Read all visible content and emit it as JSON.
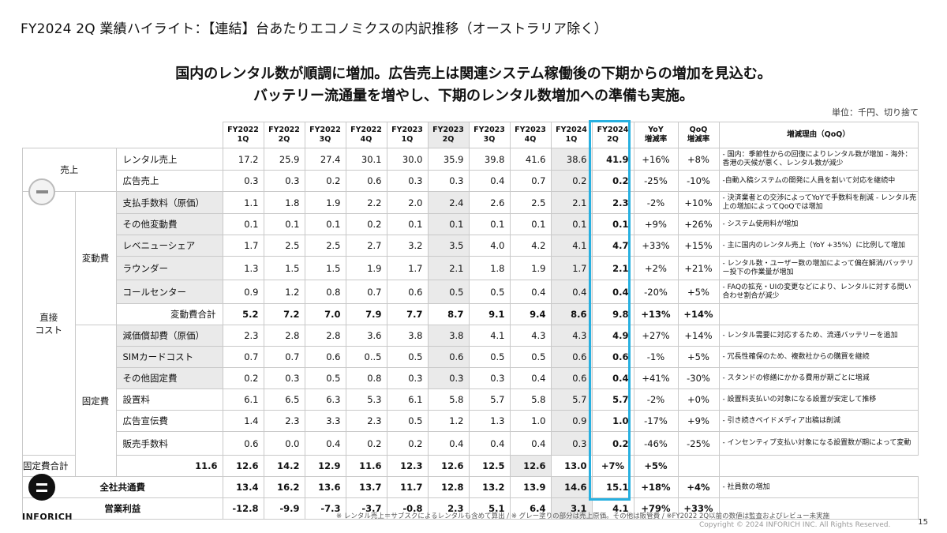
{
  "title": "FY2024 2Q 業績ハイライト：【連結】台あたりエコノミクスの内訳推移（オーストラリア除く）",
  "headline": {
    "line1": "国内のレンタル数が順調に増加。広告売上は関連システム稼働後の下期からの増加を見込む。",
    "line2": "バッテリー流通量を増やし、下期のレンタル数増加への準備も実施。"
  },
  "unit": "単位：千円、切り捨て",
  "columns": [
    {
      "top": "FY2022",
      "bottom": "1Q"
    },
    {
      "top": "FY2022",
      "bottom": "2Q"
    },
    {
      "top": "FY2022",
      "bottom": "3Q"
    },
    {
      "top": "FY2022",
      "bottom": "4Q"
    },
    {
      "top": "FY2023",
      "bottom": "1Q"
    },
    {
      "top": "FY2023",
      "bottom": "2Q"
    },
    {
      "top": "FY2023",
      "bottom": "3Q"
    },
    {
      "top": "FY2023",
      "bottom": "4Q"
    },
    {
      "top": "FY2024",
      "bottom": "1Q"
    },
    {
      "top": "FY2024",
      "bottom": "2Q"
    },
    {
      "top": "YoY",
      "bottom": "増減率"
    },
    {
      "top": "QoQ",
      "bottom": "増減率"
    }
  ],
  "reason_header": "増減理由（QoQ）",
  "groups": {
    "sales": "売上",
    "direct": "直接\nコスト",
    "variable": "変動費",
    "fixed": "固定費"
  },
  "rows": {
    "rental": {
      "label": "レンタル売上",
      "values": [
        "17.2",
        "25.9",
        "27.4",
        "30.1",
        "30.0",
        "35.9",
        "39.8",
        "41.6",
        "38.6",
        "41.9",
        "+16%",
        "+8%"
      ],
      "reason": "- 国内：季節性からの回復によりレンタル数が増加\n- 海外：香港の天候が悪く、レンタル数が減少"
    },
    "ads": {
      "label": "広告売上",
      "values": [
        "0.3",
        "0.3",
        "0.2",
        "0.6",
        "0.3",
        "0.3",
        "0.4",
        "0.7",
        "0.2",
        "0.2",
        "-25%",
        "-10%"
      ],
      "reason": "-自動入稿システムの開発に人員を割いて対応を継続中"
    },
    "fees": {
      "label": "支払手数料（原価）",
      "values": [
        "1.1",
        "1.8",
        "1.9",
        "2.2",
        "2.0",
        "2.4",
        "2.6",
        "2.5",
        "2.1",
        "2.3",
        "-2%",
        "+10%"
      ],
      "reason": "- 決済業者との交渉によってYoYで手数料を削減\n- レンタル売上の増加によってQoQでは増加"
    },
    "other_var": {
      "label": "その他変動費",
      "values": [
        "0.1",
        "0.1",
        "0.1",
        "0.2",
        "0.1",
        "0.1",
        "0.1",
        "0.1",
        "0.1",
        "0.1",
        "+9%",
        "+26%"
      ],
      "reason": "- システム使用料が増加"
    },
    "revshare": {
      "label": "レベニューシェア",
      "values": [
        "1.7",
        "2.5",
        "2.5",
        "2.7",
        "3.2",
        "3.5",
        "4.0",
        "4.2",
        "4.1",
        "4.7",
        "+33%",
        "+15%"
      ],
      "reason": "- 主に国内のレンタル売上（YoY +35%）に比例して増加"
    },
    "rounder": {
      "label": "ラウンダー",
      "values": [
        "1.3",
        "1.5",
        "1.5",
        "1.9",
        "1.7",
        "2.1",
        "1.8",
        "1.9",
        "1.7",
        "2.1",
        "+2%",
        "+21%"
      ],
      "reason": "- レンタル数・ユーザー数の増加によって偏在解消/バッテリー投下の作業量が増加"
    },
    "callcenter": {
      "label": "コールセンター",
      "values": [
        "0.9",
        "1.2",
        "0.8",
        "0.7",
        "0.6",
        "0.5",
        "0.5",
        "0.4",
        "0.4",
        "0.4",
        "-20%",
        "+5%"
      ],
      "reason": "- FAQの拡充・UIの変更などにより、レンタルに対する問い合わせ割合が減少"
    },
    "var_total": {
      "label": "変動費合計",
      "values": [
        "5.2",
        "7.2",
        "7.0",
        "7.9",
        "7.7",
        "8.7",
        "9.1",
        "9.4",
        "8.6",
        "9.8",
        "+13%",
        "+14%"
      ],
      "reason": ""
    },
    "depreciation": {
      "label": "減価償却費（原価）",
      "values": [
        "2.3",
        "2.8",
        "2.8",
        "3.6",
        "3.8",
        "3.8",
        "4.1",
        "4.3",
        "4.3",
        "4.9",
        "+27%",
        "+14%"
      ],
      "reason": "- レンタル需要に対応するため、流通バッテリーを追加"
    },
    "sim": {
      "label": "SIMカードコスト",
      "values": [
        "0.7",
        "0.7",
        "0.6",
        "0..5",
        "0.5",
        "0.6",
        "0.5",
        "0.5",
        "0.6",
        "0.6",
        "-1%",
        "+5%"
      ],
      "reason": "- 冗長性確保のため、複数社からの購買を継続"
    },
    "other_fixed": {
      "label": "その他固定費",
      "values": [
        "0.2",
        "0.3",
        "0.5",
        "0.8",
        "0.3",
        "0.3",
        "0.3",
        "0.4",
        "0.6",
        "0.4",
        "+41%",
        "-30%"
      ],
      "reason": "- スタンドの修繕にかかる費用が期ごとに増減"
    },
    "install": {
      "label": "設置料",
      "values": [
        "6.1",
        "6.5",
        "6.3",
        "5.3",
        "6.1",
        "5.8",
        "5.7",
        "5.8",
        "5.7",
        "5.7",
        "-2%",
        "+0%"
      ],
      "reason": "- 設置料支払いの対象になる設置が安定して推移"
    },
    "promo": {
      "label": "広告宣伝費",
      "values": [
        "1.4",
        "2.3",
        "3.3",
        "2.3",
        "0.5",
        "1.2",
        "1.3",
        "1.0",
        "0.9",
        "1.0",
        "-17%",
        "+9%"
      ],
      "reason": "- 引き続きペイドメディア出稿は削減"
    },
    "sales_fee": {
      "label": "販売手数料",
      "values": [
        "0.6",
        "0.0",
        "0.4",
        "0.2",
        "0.2",
        "0.4",
        "0.4",
        "0.4",
        "0.3",
        "0.2",
        "-46%",
        "-25%"
      ],
      "reason": "- インセンティブ支払い対象になる設置数が期によって変動"
    },
    "fixed_total": {
      "label": "固定費合計",
      "values": [
        "11.6",
        "12.6",
        "14.2",
        "12.9",
        "11.6",
        "12.3",
        "12.6",
        "12.5",
        "12.6",
        "13.0",
        "+7%",
        "+5%"
      ],
      "reason": ""
    },
    "corporate": {
      "label": "全社共通費",
      "values": [
        "13.4",
        "16.2",
        "13.6",
        "13.7",
        "11.7",
        "12.8",
        "13.2",
        "13.9",
        "14.6",
        "15.1",
        "+18%",
        "+4%"
      ],
      "reason": "- 社員数の増加"
    },
    "op_profit": {
      "label": "営業利益",
      "values": [
        "-12.8",
        "-9.9",
        "-7.3",
        "-3.7",
        "-0.8",
        "2.3",
        "5.1",
        "6.4",
        "3.1",
        "4.1",
        "+79%",
        "+33%"
      ],
      "reason": ""
    }
  },
  "logo": "INFORICH",
  "footnote": "※ レンタル売上＝サブスクによるレンタルも含めて算出 / ※ グレー塗りの部分は売上原価。その他は販管費 / ※FY2022 2Q以前の数値は監査およびレビュー未実施",
  "copyright": "Copyright © 2024 INFORICH INC. All Rights Reserved.",
  "page_number": "15",
  "colors": {
    "highlight_box": "#27b0e0",
    "gray_fill": "#eaeaea"
  }
}
